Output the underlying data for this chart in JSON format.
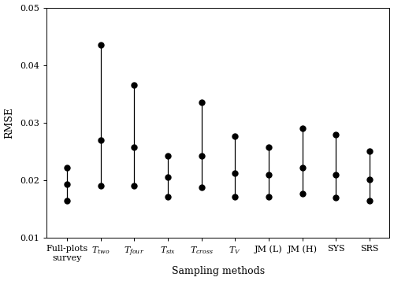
{
  "lower": [
    0.0165,
    0.019,
    0.019,
    0.0172,
    0.0188,
    0.0172,
    0.0172,
    0.0177,
    0.017,
    0.0165
  ],
  "middle": [
    0.0193,
    0.027,
    0.0258,
    0.0205,
    0.0242,
    0.0213,
    0.0209,
    0.0222,
    0.021,
    0.0202
  ],
  "upper": [
    0.0222,
    0.0435,
    0.0365,
    0.0242,
    0.0335,
    0.0277,
    0.0258,
    0.029,
    0.028,
    0.025
  ],
  "ylabel": "RMSE",
  "xlabel": "Sampling methods",
  "ylim": [
    0.01,
    0.05
  ],
  "yticks": [
    0.01,
    0.02,
    0.03,
    0.04,
    0.05
  ],
  "color": "#000000",
  "marker_size": 5,
  "line_width": 0.9,
  "figsize": [
    5.0,
    3.57
  ],
  "dpi": 100,
  "tick_fontsize": 8,
  "label_fontsize": 9
}
